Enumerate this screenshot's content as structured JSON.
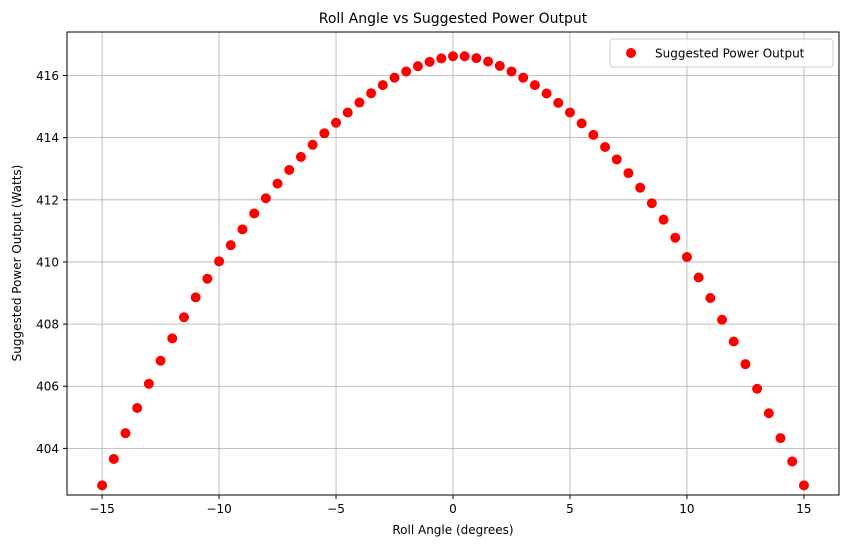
{
  "chart_data": {
    "type": "scatter",
    "title": "Roll Angle vs Suggested Power Output",
    "xlabel": "Roll Angle (degrees)",
    "ylabel": "Suggested Power Output (Watts)",
    "xlim": [
      -16.5,
      16.5
    ],
    "ylim": [
      402.5,
      417.4
    ],
    "xticks": [
      -15,
      -10,
      -5,
      0,
      5,
      10,
      15
    ],
    "xtick_labels": [
      "−15",
      "−10",
      "−5",
      "0",
      "5",
      "10",
      "15"
    ],
    "yticks": [
      404,
      406,
      408,
      410,
      412,
      414,
      416
    ],
    "ytick_labels": [
      "404",
      "406",
      "408",
      "410",
      "412",
      "414",
      "416"
    ],
    "grid": true,
    "legend_position": "top-right",
    "colors": {
      "series": "#ff0000",
      "grid": "#b0b0b0",
      "axis": "#000000"
    },
    "series": [
      {
        "name": "Suggested Power Output",
        "x": [
          -15.0,
          -14.5,
          -14.0,
          -13.5,
          -13.0,
          -12.5,
          -12.0,
          -11.5,
          -11.0,
          -10.5,
          -10.0,
          -9.5,
          -9.0,
          -8.5,
          -8.0,
          -7.5,
          -7.0,
          -6.5,
          -6.0,
          -5.5,
          -5.0,
          -4.5,
          -4.0,
          -3.5,
          -3.0,
          -2.5,
          -2.0,
          -1.5,
          -1.0,
          -0.5,
          0.0,
          0.5,
          1.0,
          1.5,
          2.0,
          2.5,
          3.0,
          3.5,
          4.0,
          4.5,
          5.0,
          5.5,
          6.0,
          6.5,
          7.0,
          7.5,
          8.0,
          8.5,
          9.0,
          9.5,
          10.0,
          10.5,
          11.0,
          11.5,
          12.0,
          12.5,
          13.0,
          13.5,
          14.0,
          14.5,
          15.0
        ],
        "y": [
          402.81,
          403.66,
          404.49,
          405.3,
          406.08,
          406.82,
          407.54,
          408.22,
          408.86,
          409.46,
          410.02,
          410.54,
          411.05,
          411.56,
          412.05,
          412.52,
          412.96,
          413.38,
          413.77,
          414.14,
          414.48,
          414.81,
          415.13,
          415.43,
          415.69,
          415.93,
          416.13,
          416.3,
          416.44,
          416.55,
          416.62,
          416.62,
          416.56,
          416.45,
          416.31,
          416.13,
          415.93,
          415.69,
          415.42,
          415.12,
          414.81,
          414.46,
          414.09,
          413.7,
          413.3,
          412.86,
          412.39,
          411.89,
          411.36,
          410.78,
          410.16,
          409.5,
          408.84,
          408.14,
          407.44,
          406.71,
          405.92,
          405.13,
          404.33,
          403.58,
          402.81
        ]
      }
    ]
  }
}
